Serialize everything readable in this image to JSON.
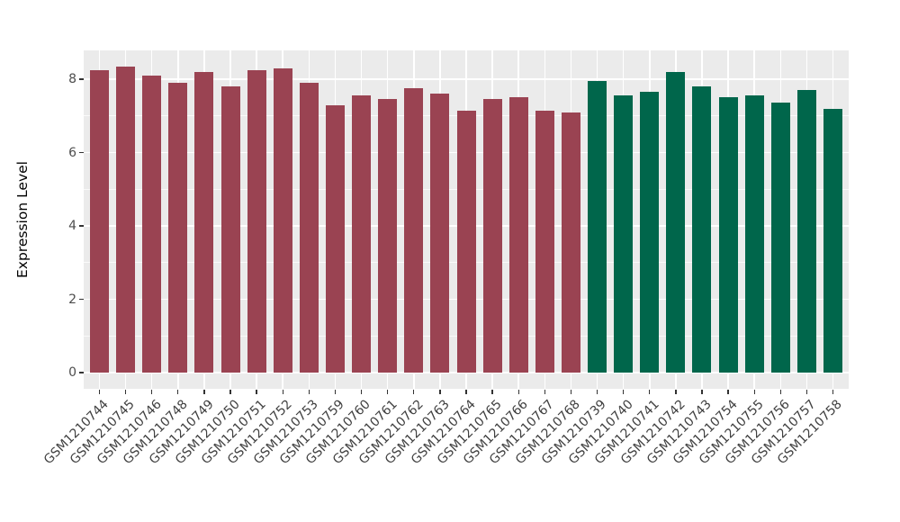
{
  "chart_data": {
    "type": "bar",
    "title": "",
    "xlabel": "",
    "ylabel": "Expression Level",
    "ylim": [
      0,
      8.8
    ],
    "yticks": [
      0,
      2,
      4,
      6,
      8
    ],
    "minor_gridlines": [
      1,
      3,
      5,
      7
    ],
    "grid": "on",
    "legend_position": "none",
    "panel_background": "#EBEBEB",
    "gridline_color": "#FFFFFF",
    "group_colors": {
      "group1": "#9A4352",
      "group2": "#00664B"
    },
    "categories": [
      "GSM1210744",
      "GSM1210745",
      "GSM1210746",
      "GSM1210748",
      "GSM1210749",
      "GSM1210750",
      "GSM1210751",
      "GSM1210752",
      "GSM1210753",
      "GSM1210759",
      "GSM1210760",
      "GSM1210761",
      "GSM1210762",
      "GSM1210763",
      "GSM1210764",
      "GSM1210765",
      "GSM1210766",
      "GSM1210767",
      "GSM1210768",
      "GSM1210739",
      "GSM1210740",
      "GSM1210741",
      "GSM1210742",
      "GSM1210743",
      "GSM1210754",
      "GSM1210755",
      "GSM1210756",
      "GSM1210757",
      "GSM1210758"
    ],
    "values": [
      8.25,
      8.35,
      8.1,
      7.9,
      8.2,
      7.8,
      8.25,
      8.3,
      7.9,
      7.3,
      7.55,
      7.45,
      7.75,
      7.6,
      7.15,
      7.45,
      7.5,
      7.15,
      7.1,
      7.95,
      7.55,
      7.65,
      8.2,
      7.8,
      7.5,
      7.55,
      7.35,
      7.7,
      7.2
    ],
    "groups": [
      "group1",
      "group1",
      "group1",
      "group1",
      "group1",
      "group1",
      "group1",
      "group1",
      "group1",
      "group1",
      "group1",
      "group1",
      "group1",
      "group1",
      "group1",
      "group1",
      "group1",
      "group1",
      "group1",
      "group2",
      "group2",
      "group2",
      "group2",
      "group2",
      "group2",
      "group2",
      "group2",
      "group2",
      "group2"
    ]
  }
}
